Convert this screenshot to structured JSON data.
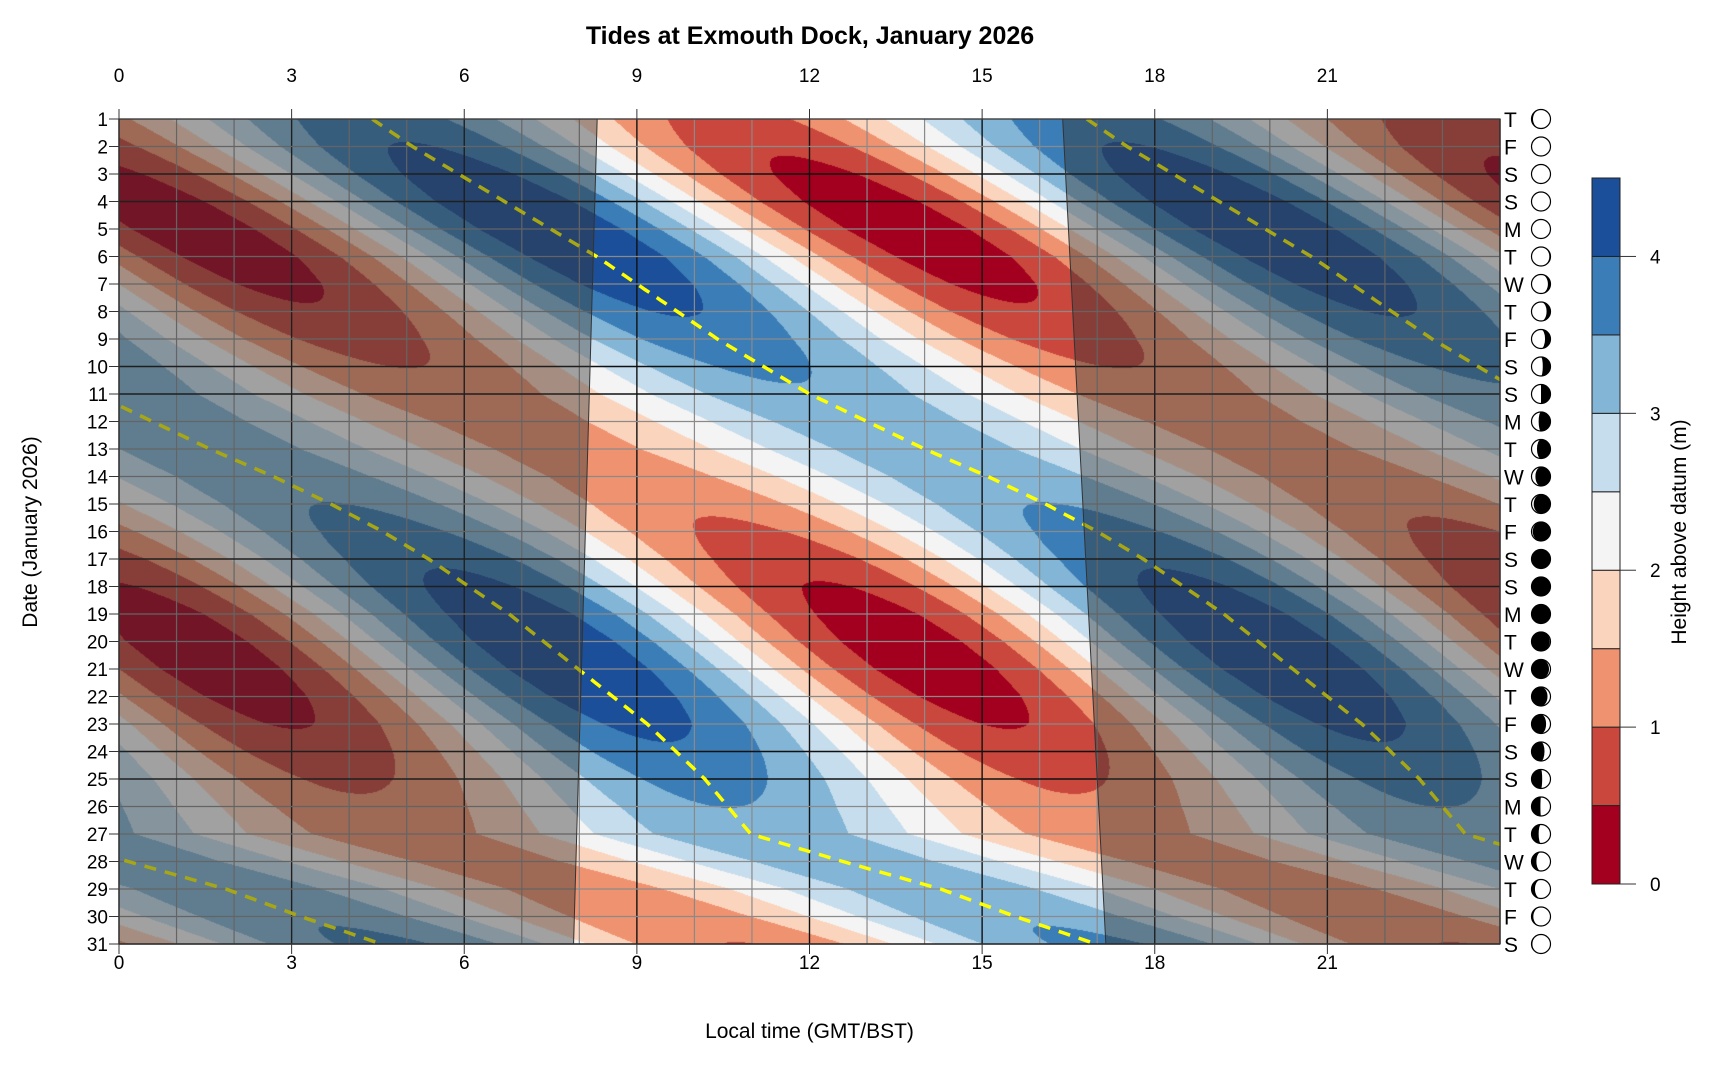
{
  "chart_data": {
    "type": "heatmap",
    "title": "Tides at Exmouth Dock, January 2026",
    "xlabel": "Local time (GMT/BST)",
    "ylabel": "Date (January 2026)",
    "colorbar_label": "Height above datum (m)",
    "x_ticks": [
      0,
      3,
      6,
      9,
      12,
      15,
      18,
      21
    ],
    "xlim": [
      0,
      24
    ],
    "days": [
      1,
      2,
      3,
      4,
      5,
      6,
      7,
      8,
      9,
      10,
      11,
      12,
      13,
      14,
      15,
      16,
      17,
      18,
      19,
      20,
      21,
      22,
      23,
      24,
      25,
      26,
      27,
      28,
      29,
      30,
      31
    ],
    "weekday_letters": [
      "T",
      "F",
      "S",
      "S",
      "M",
      "T",
      "W",
      "T",
      "F",
      "S",
      "S",
      "M",
      "T",
      "W",
      "T",
      "F",
      "S",
      "S",
      "M",
      "T",
      "W",
      "T",
      "F",
      "S",
      "S",
      "M",
      "T",
      "W",
      "T",
      "F",
      "S"
    ],
    "weekend_days": [
      3,
      4,
      10,
      11,
      17,
      18,
      24,
      25,
      31
    ],
    "moon_phase": [
      0.41,
      0.45,
      0.48,
      0.52,
      0.55,
      0.58,
      0.62,
      0.65,
      0.68,
      0.72,
      0.75,
      0.79,
      0.82,
      0.85,
      0.89,
      0.92,
      0.96,
      0.99,
      0.02,
      0.06,
      0.09,
      0.13,
      0.16,
      0.19,
      0.23,
      0.26,
      0.29,
      0.33,
      0.36,
      0.4,
      0.43
    ],
    "high_water_time_hours": [
      4.4,
      5.1,
      5.9,
      6.7,
      7.5,
      8.3,
      9.0,
      9.7,
      10.4,
      11.2,
      12.0,
      13.0,
      14.0,
      15.1,
      16.1,
      17.0,
      17.8,
      18.5,
      19.2,
      19.8,
      20.4,
      21.0,
      21.6,
      22.1,
      22.6,
      23.0,
      23.4,
      25.0,
      26.7,
      28.0,
      29.4
    ],
    "tidal_period_hours": 12.42,
    "mean_level_m": 2.3,
    "tidal_amplitude_m": [
      1.52,
      1.74,
      1.93,
      2.06,
      2.1,
      2.06,
      1.93,
      1.74,
      1.52,
      1.31,
      1.13,
      1.03,
      1.0,
      1.07,
      1.21,
      1.41,
      1.63,
      1.84,
      2.0,
      2.09,
      2.09,
      2.0,
      1.84,
      1.63,
      1.41,
      1.21,
      1.07,
      1.0,
      1.03,
      1.14,
      1.31
    ],
    "sunrise_hours_day1_day31": [
      8.31,
      7.9
    ],
    "sunset_hours_day1_day31": [
      16.4,
      17.15
    ],
    "levels": [
      0,
      0.5,
      1,
      1.5,
      2,
      2.5,
      3,
      3.5,
      4,
      4.5
    ],
    "level_colors": [
      "#a3001f",
      "#c9473c",
      "#ef9270",
      "#fbd4bd",
      "#f4f4f4",
      "#c6dded",
      "#82b5d6",
      "#3b7db6",
      "#1b4f99"
    ],
    "colorbar_ticks": [
      0,
      1,
      2,
      3,
      4
    ],
    "high_water_line_color": "#ffff00",
    "night_shade_color": "rgba(50,50,50,0.43)"
  }
}
